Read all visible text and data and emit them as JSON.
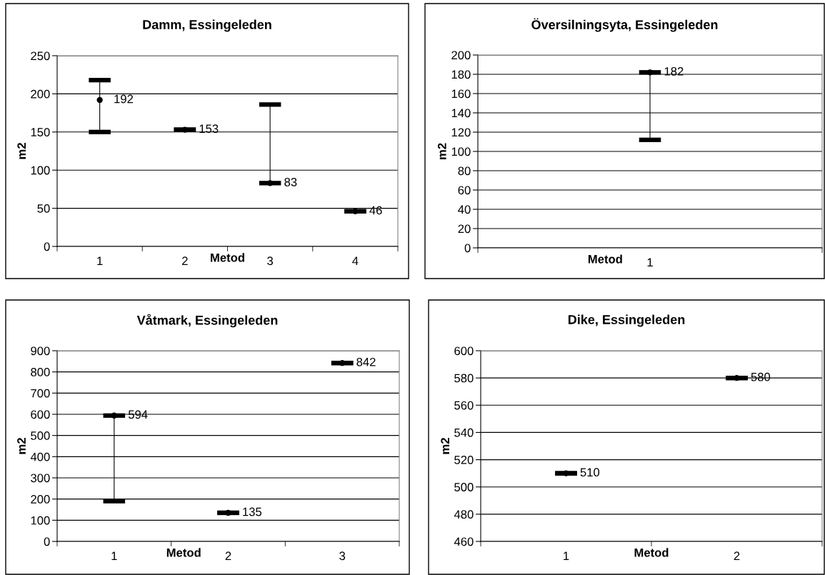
{
  "chart_data": [
    {
      "type": "scatter",
      "title": "Damm, Essingeleden",
      "xlabel": "Metod",
      "ylabel": "m2",
      "categories": [
        "1",
        "2",
        "3",
        "4"
      ],
      "values": [
        192,
        153,
        83,
        46
      ],
      "errors": [
        [
          150,
          218
        ],
        [
          153,
          153
        ],
        [
          83,
          186
        ],
        [
          46,
          46
        ]
      ],
      "color": "#000000",
      "marker": "circle",
      "data_labels": true,
      "ylim": [
        0,
        250
      ],
      "yticks": [
        0,
        50,
        100,
        150,
        200,
        250
      ],
      "grid": "y",
      "legend": false
    },
    {
      "type": "scatter",
      "title": "Översilningsyta, Essingeleden",
      "xlabel": "Metod",
      "ylabel": "m2",
      "categories": [
        "1"
      ],
      "values": [
        182
      ],
      "errors": [
        [
          112,
          182
        ]
      ],
      "color": "#000000",
      "marker": "circle",
      "data_labels": true,
      "ylim": [
        0,
        200
      ],
      "yticks": [
        0,
        20,
        40,
        60,
        80,
        100,
        120,
        140,
        160,
        180,
        200
      ],
      "grid": "y",
      "legend": false
    },
    {
      "type": "scatter",
      "title": "Våtmark, Essingeleden",
      "xlabel": "Metod",
      "ylabel": "m2",
      "categories": [
        "1",
        "2",
        "3"
      ],
      "values": [
        594,
        135,
        842
      ],
      "errors": [
        [
          190,
          594
        ],
        [
          135,
          135
        ],
        [
          842,
          842
        ]
      ],
      "color": "#000000",
      "marker": "circle",
      "data_labels": true,
      "ylim": [
        0,
        900
      ],
      "yticks": [
        0,
        100,
        200,
        300,
        400,
        500,
        600,
        700,
        800,
        900
      ],
      "grid": "y",
      "legend": false
    },
    {
      "type": "scatter",
      "title": "Dike, Essingeleden",
      "xlabel": "Metod",
      "ylabel": "m2",
      "categories": [
        "1",
        "2"
      ],
      "values": [
        510,
        580
      ],
      "errors": [
        [
          510,
          510
        ],
        [
          580,
          580
        ]
      ],
      "color": "#000000",
      "marker": "circle",
      "data_labels": true,
      "ylim": [
        460,
        600
      ],
      "yticks": [
        460,
        480,
        500,
        520,
        540,
        560,
        580,
        600
      ],
      "grid": "y",
      "legend": false
    }
  ]
}
